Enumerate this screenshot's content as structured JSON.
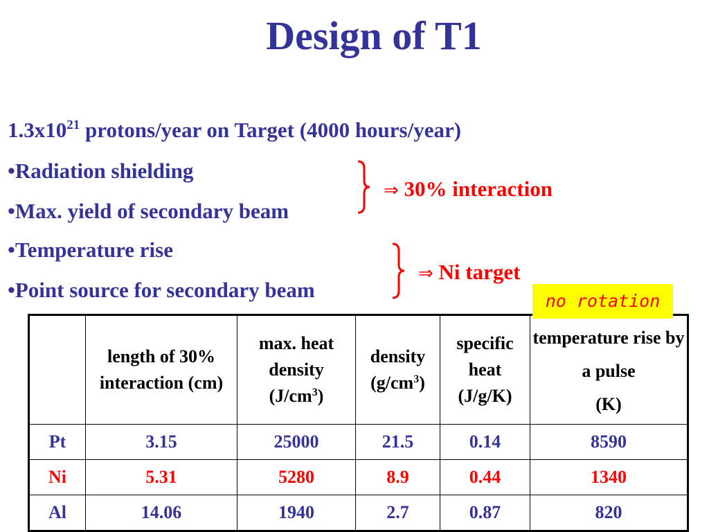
{
  "title": "Design of T1",
  "intro": {
    "prefix": "1.3x10",
    "exponent": "21",
    "suffix": " protons/year on Target (4000 hours/year)"
  },
  "bullets": [
    "•Radiation shielding",
    "•Max. yield of secondary beam",
    "•Temperature rise",
    "•Point source for secondary beam"
  ],
  "annotations": {
    "arrow": "⇒",
    "interaction": " 30% interaction",
    "target": " Ni target",
    "sticky_note": "no rotation"
  },
  "colors": {
    "title": "#333399",
    "body": "#333399",
    "highlight": "#ff0000",
    "sticky_bg": "#ffff00"
  },
  "table": {
    "headers": [
      "",
      "length of 30% interaction (cm)",
      "max. heat density",
      "density",
      "specific heat",
      "temperature rise by a pulse"
    ],
    "header_units": {
      "max_heat_density": [
        "(J/cm",
        "3",
        ")"
      ],
      "density": [
        "(g/cm",
        "3",
        ")"
      ],
      "specific_heat": "(J/g/K)",
      "temperature_rise": "(K)"
    },
    "rows": [
      {
        "material": "Pt",
        "length": "3.15",
        "heat_density": "25000",
        "density": "21.5",
        "specific_heat": "0.14",
        "temp_rise": "8590"
      },
      {
        "material": "Ni",
        "length": "5.31",
        "heat_density": "5280",
        "density": "8.9",
        "specific_heat": "0.44",
        "temp_rise": "1340"
      },
      {
        "material": "Al",
        "length": "14.06",
        "heat_density": "1940",
        "density": "2.7",
        "specific_heat": "0.87",
        "temp_rise": "820"
      }
    ]
  }
}
